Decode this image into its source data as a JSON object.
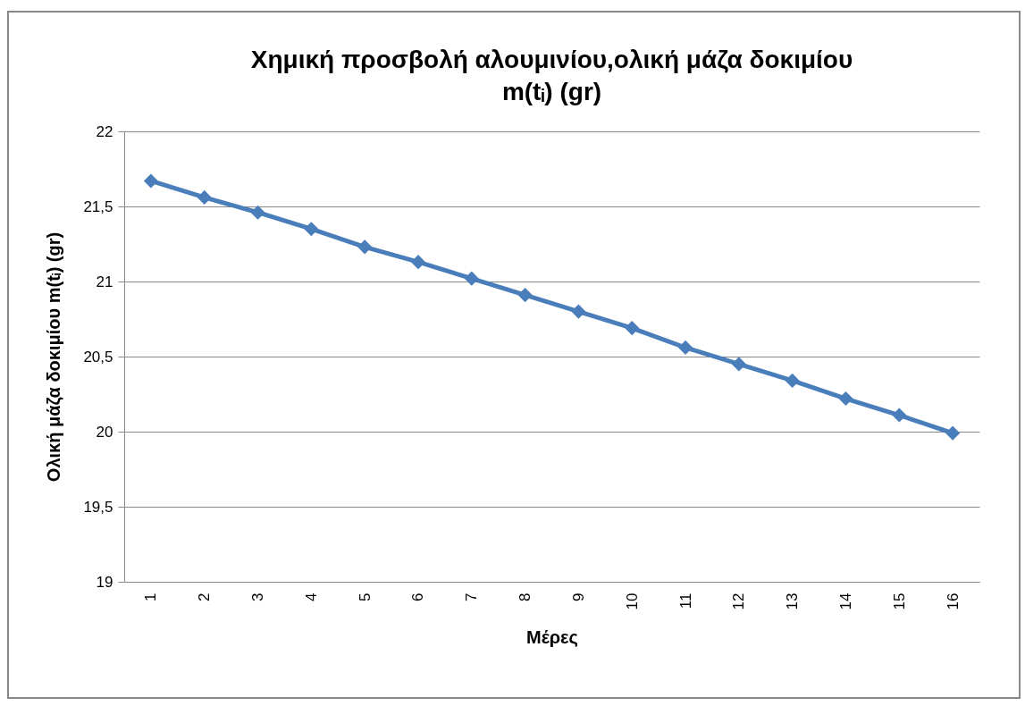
{
  "chart_data": {
    "type": "line",
    "title": "Χημική προσβολή αλουμινίου,ολική μάζα δοκιμίου\nm(tᵢ) (gr)",
    "xlabel": "Μέρες",
    "ylabel": "Ολική  μάζα δοκιμίου m(tᵢ) (gr)",
    "categories": [
      "1",
      "2",
      "3",
      "4",
      "5",
      "6",
      "7",
      "8",
      "9",
      "10",
      "11",
      "12",
      "13",
      "14",
      "15",
      "16"
    ],
    "series": [
      {
        "color": "#4a7ebb",
        "values": [
          21.67,
          21.56,
          21.46,
          21.35,
          21.23,
          21.13,
          21.02,
          20.91,
          20.8,
          20.69,
          20.56,
          20.45,
          20.34,
          20.22,
          20.11,
          19.99
        ]
      }
    ],
    "ylim": [
      19,
      22
    ],
    "yticks": [
      19,
      {
        "value": 19.5,
        "label": "19,5"
      },
      20,
      {
        "value": 20.5,
        "label": "20,5"
      },
      21,
      {
        "value": 21.5,
        "label": "21,5"
      },
      22
    ],
    "grid": "y",
    "marker": "diamond",
    "line_style": "solid",
    "legend": false
  }
}
